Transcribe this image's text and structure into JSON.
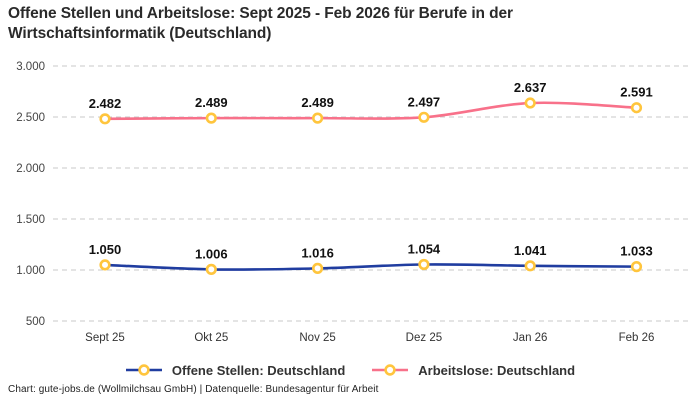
{
  "page": {
    "title": "Offene Stellen und Arbeitslose: Sept 2025 - Feb 2026 für Berufe in der Wirtschaftsinformatik (Deutschland)",
    "footer": "Chart: gute-jobs.de (Wollmilchsau GmbH) | Datenquelle: Bundesagentur für Arbeit"
  },
  "chart_data": {
    "type": "line",
    "title": "Offene Stellen und Arbeitslose: Sept 2025 - Feb 2026 für Berufe in der Wirtschaftsinformatik (Deutschland)",
    "categories": [
      "Sept 25",
      "Okt 25",
      "Nov 25",
      "Dez 25",
      "Jan 26",
      "Feb 26"
    ],
    "series": [
      {
        "name": "Offene Stellen: Deutschland",
        "color": "#203da0",
        "values": [
          1050,
          1006,
          1016,
          1054,
          1041,
          1033
        ],
        "value_labels": [
          "1.050",
          "1.006",
          "1.016",
          "1.054",
          "1.041",
          "1.033"
        ]
      },
      {
        "name": "Arbeitslose: Deutschland",
        "color": "#f8718a",
        "values": [
          2482,
          2489,
          2489,
          2497,
          2637,
          2591
        ],
        "value_labels": [
          "2.482",
          "2.489",
          "2.489",
          "2.497",
          "2.637",
          "2.591"
        ]
      }
    ],
    "y_ticks": [
      500,
      1000,
      1500,
      2000,
      2500,
      3000
    ],
    "y_tick_labels": [
      "500",
      "1.000",
      "1.500",
      "2.000",
      "2.500",
      "3.000"
    ],
    "ylim": [
      500,
      3000
    ],
    "marker": {
      "fill": "#ffffff",
      "stroke": "#ffc53d"
    },
    "grid": {
      "style": "dashed",
      "color": "#c9c9c9",
      "horizontal_only": true
    },
    "legend_position": "bottom",
    "value_labels_shown": true,
    "colors": {
      "text_dark": "#111111",
      "tick_text": "#444444",
      "category_text": "#333333"
    }
  }
}
